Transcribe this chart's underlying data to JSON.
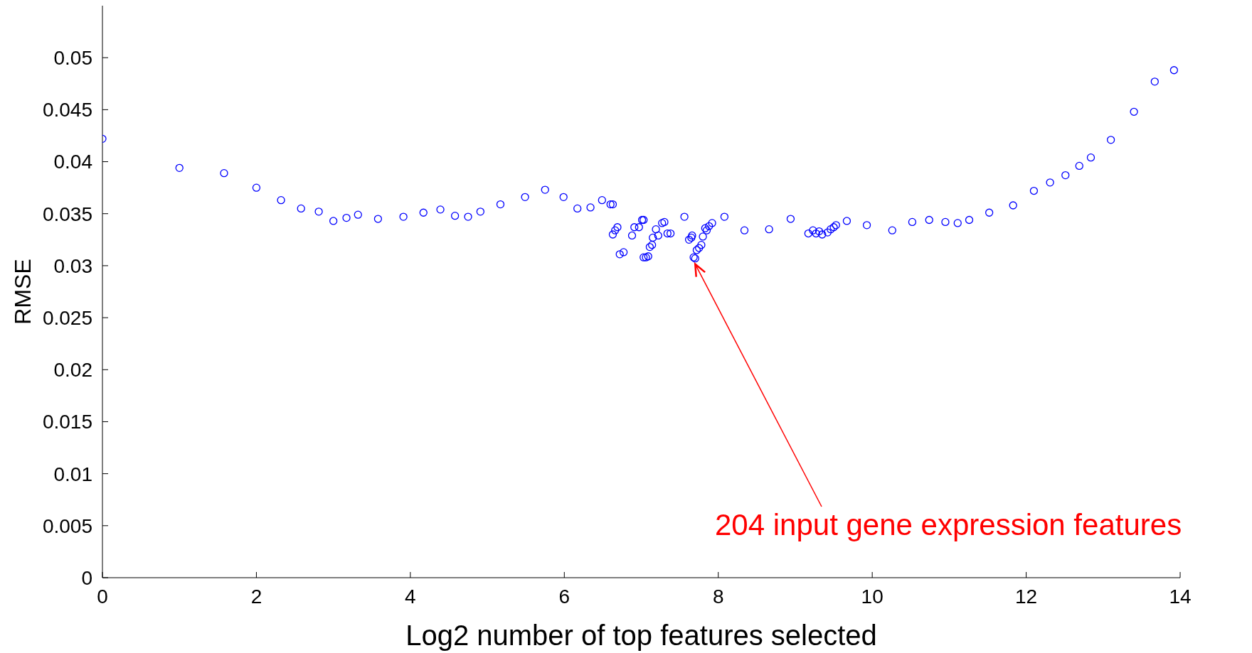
{
  "chart_data": {
    "type": "scatter",
    "xlabel": "Log2 number of top features selected",
    "ylabel": "RMSE",
    "marker": "circle",
    "xlim": [
      0,
      14
    ],
    "ylim": [
      0,
      0.055
    ],
    "xticks": [
      0,
      2,
      4,
      6,
      8,
      10,
      12,
      14
    ],
    "yticks": [
      0,
      0.005,
      0.01,
      0.015,
      0.02,
      0.025,
      0.03,
      0.035,
      0.04,
      0.045,
      0.05
    ],
    "annotations": [
      {
        "text": "204 input gene expression features",
        "x": 7.7,
        "y": 0.0307
      }
    ],
    "series": [
      {
        "color": "#0000ff",
        "x": [
          0,
          1,
          1.58,
          2,
          2.32,
          2.58,
          2.81,
          3,
          3.17,
          3.32,
          3.58,
          3.91,
          4.17,
          4.39,
          4.58,
          4.75,
          4.91,
          5.17,
          5.49,
          5.75,
          5.99,
          6.17,
          6.34,
          6.49,
          6.6,
          6.63,
          6.63,
          6.66,
          6.69,
          6.72,
          6.77,
          6.88,
          6.91,
          6.97,
          7.01,
          7.03,
          7.03,
          7.06,
          7.09,
          7.11,
          7.14,
          7.15,
          7.19,
          7.22,
          7.27,
          7.3,
          7.34,
          7.38,
          7.56,
          7.62,
          7.65,
          7.66,
          7.68,
          7.7,
          7.72,
          7.75,
          7.78,
          7.8,
          7.83,
          7.85,
          7.88,
          7.92,
          8.08,
          8.34,
          8.66,
          8.94,
          9.17,
          9.23,
          9.27,
          9.31,
          9.35,
          9.42,
          9.46,
          9.5,
          9.53,
          9.67,
          9.93,
          10.26,
          10.52,
          10.74,
          10.95,
          11.11,
          11.26,
          11.52,
          11.83,
          12.1,
          12.31,
          12.51,
          12.69,
          12.84,
          13.1,
          13.4,
          13.67,
          13.92
        ],
        "values": [
          0.0422,
          0.0394,
          0.0389,
          0.0375,
          0.0363,
          0.0355,
          0.0352,
          0.0343,
          0.0346,
          0.0349,
          0.0345,
          0.0347,
          0.0351,
          0.0354,
          0.0348,
          0.0347,
          0.0352,
          0.0359,
          0.0366,
          0.0373,
          0.0366,
          0.0355,
          0.0356,
          0.0363,
          0.0359,
          0.0359,
          0.033,
          0.0334,
          0.0337,
          0.0311,
          0.0313,
          0.0329,
          0.0337,
          0.0337,
          0.0344,
          0.0344,
          0.0308,
          0.0308,
          0.0309,
          0.0318,
          0.032,
          0.0327,
          0.0335,
          0.0329,
          0.0341,
          0.0342,
          0.0331,
          0.0331,
          0.0347,
          0.0325,
          0.0327,
          0.0329,
          0.0308,
          0.0307,
          0.0315,
          0.0317,
          0.032,
          0.0328,
          0.0336,
          0.0334,
          0.0338,
          0.0341,
          0.0347,
          0.0334,
          0.0335,
          0.0345,
          0.0331,
          0.0334,
          0.0331,
          0.0333,
          0.033,
          0.0332,
          0.0335,
          0.0337,
          0.0339,
          0.0343,
          0.0339,
          0.0334,
          0.0342,
          0.0344,
          0.0342,
          0.0341,
          0.0344,
          0.0351,
          0.0358,
          0.0372,
          0.038,
          0.0387,
          0.0396,
          0.0404,
          0.0421,
          0.0448,
          0.0477,
          0.0488
        ]
      }
    ]
  }
}
